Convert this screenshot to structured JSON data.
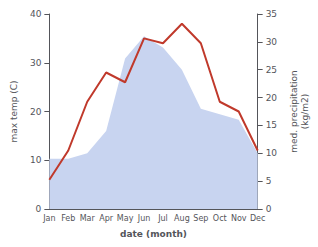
{
  "chart_data": {
    "type": "line",
    "categories": [
      "Jan",
      "Feb",
      "Mar",
      "Apr",
      "May",
      "Jun",
      "Jul",
      "Aug",
      "Sep",
      "Oct",
      "Nov",
      "Dec"
    ],
    "series": [
      {
        "type": "area",
        "color": "#c8d4f0",
        "axis": "y2",
        "values": [
          9,
          9,
          10,
          14,
          27,
          31,
          29,
          25,
          18,
          17,
          16,
          10
        ]
      },
      {
        "type": "line",
        "color": "#c0392b",
        "values": [
          6,
          12,
          22,
          28,
          26,
          35,
          34,
          38,
          34,
          22,
          20,
          12
        ]
      }
    ],
    "xlabel": "date (month)",
    "ylabel": "max temp (C)",
    "y2label": "med. precipitation\n(kg/m2)",
    "ylim": [
      0,
      40
    ],
    "yticks": [
      0,
      10,
      20,
      30,
      40
    ],
    "y2lim": [
      0,
      35
    ],
    "y2ticks": [
      0,
      5,
      10,
      15,
      20,
      25,
      30,
      35
    ],
    "grid": false
  }
}
